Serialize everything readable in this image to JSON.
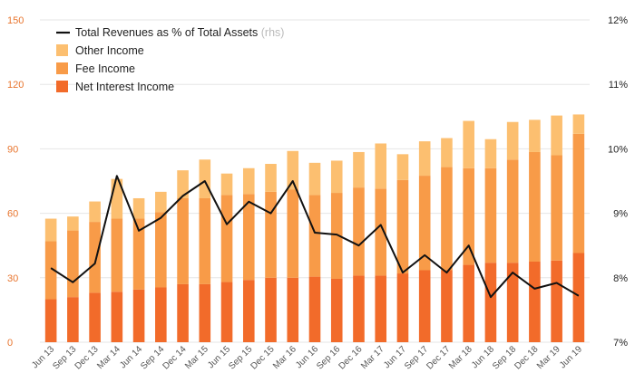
{
  "chart_data": {
    "type": "bar",
    "stacked": true,
    "categories": [
      "Jun 13",
      "Sep 13",
      "Dec 13",
      "Mar 14",
      "Jun 14",
      "Sep 14",
      "Dec 14",
      "Mar 15",
      "Jun 15",
      "Sep 15",
      "Dec 15",
      "Mar 16",
      "Jun 16",
      "Sep 16",
      "Dec 16",
      "Mar 17",
      "Jun 17",
      "Sep 17",
      "Dec 17",
      "Mar 18",
      "Jun 18",
      "Sep 18",
      "Dec 18",
      "Mar 19",
      "Jun 19"
    ],
    "series": [
      {
        "name": "Net Interest Income",
        "color": "#f26b2a",
        "values": [
          20,
          21,
          23,
          23.5,
          24.5,
          25.5,
          27,
          27,
          28,
          29,
          30,
          30,
          30.5,
          29.5,
          31,
          31,
          32,
          33.5,
          33.5,
          36,
          37,
          37,
          37.5,
          38,
          41.5
        ]
      },
      {
        "name": "Fee Income",
        "color": "#f89b48",
        "values": [
          27,
          31,
          33,
          34,
          33,
          35,
          40,
          40,
          40.5,
          40,
          40,
          41,
          38,
          40,
          41,
          40.5,
          43.5,
          44,
          48,
          45,
          44,
          48,
          51,
          49,
          55.5
        ]
      },
      {
        "name": "Other Income",
        "color": "#fcbf70",
        "values": [
          10.5,
          6.5,
          9.5,
          18.5,
          9.5,
          9.5,
          13,
          18,
          10,
          12,
          13,
          18,
          15,
          15,
          16.5,
          21,
          12,
          16,
          13.5,
          22,
          13.5,
          17.5,
          15,
          18.5,
          9
        ]
      }
    ],
    "line_series": {
      "name": "Total Revenues as % of Total Assets",
      "note": "(rhs)",
      "axis": "right",
      "color": "#111111",
      "values": [
        8.15,
        7.93,
        8.22,
        9.58,
        8.73,
        8.93,
        9.27,
        9.5,
        8.83,
        9.18,
        9.0,
        9.5,
        8.7,
        8.67,
        8.5,
        8.82,
        8.08,
        8.35,
        8.08,
        8.5,
        7.7,
        8.08,
        7.83,
        7.92,
        7.72
      ]
    },
    "ylim": [
      0,
      150
    ],
    "yticks": [
      0,
      30,
      60,
      90,
      120,
      150
    ],
    "y2lim": [
      7,
      12
    ],
    "y2ticks": [
      "7%",
      "8%",
      "9%",
      "10%",
      "11%",
      "12%"
    ],
    "grid": true,
    "legend_position": "top-left"
  }
}
